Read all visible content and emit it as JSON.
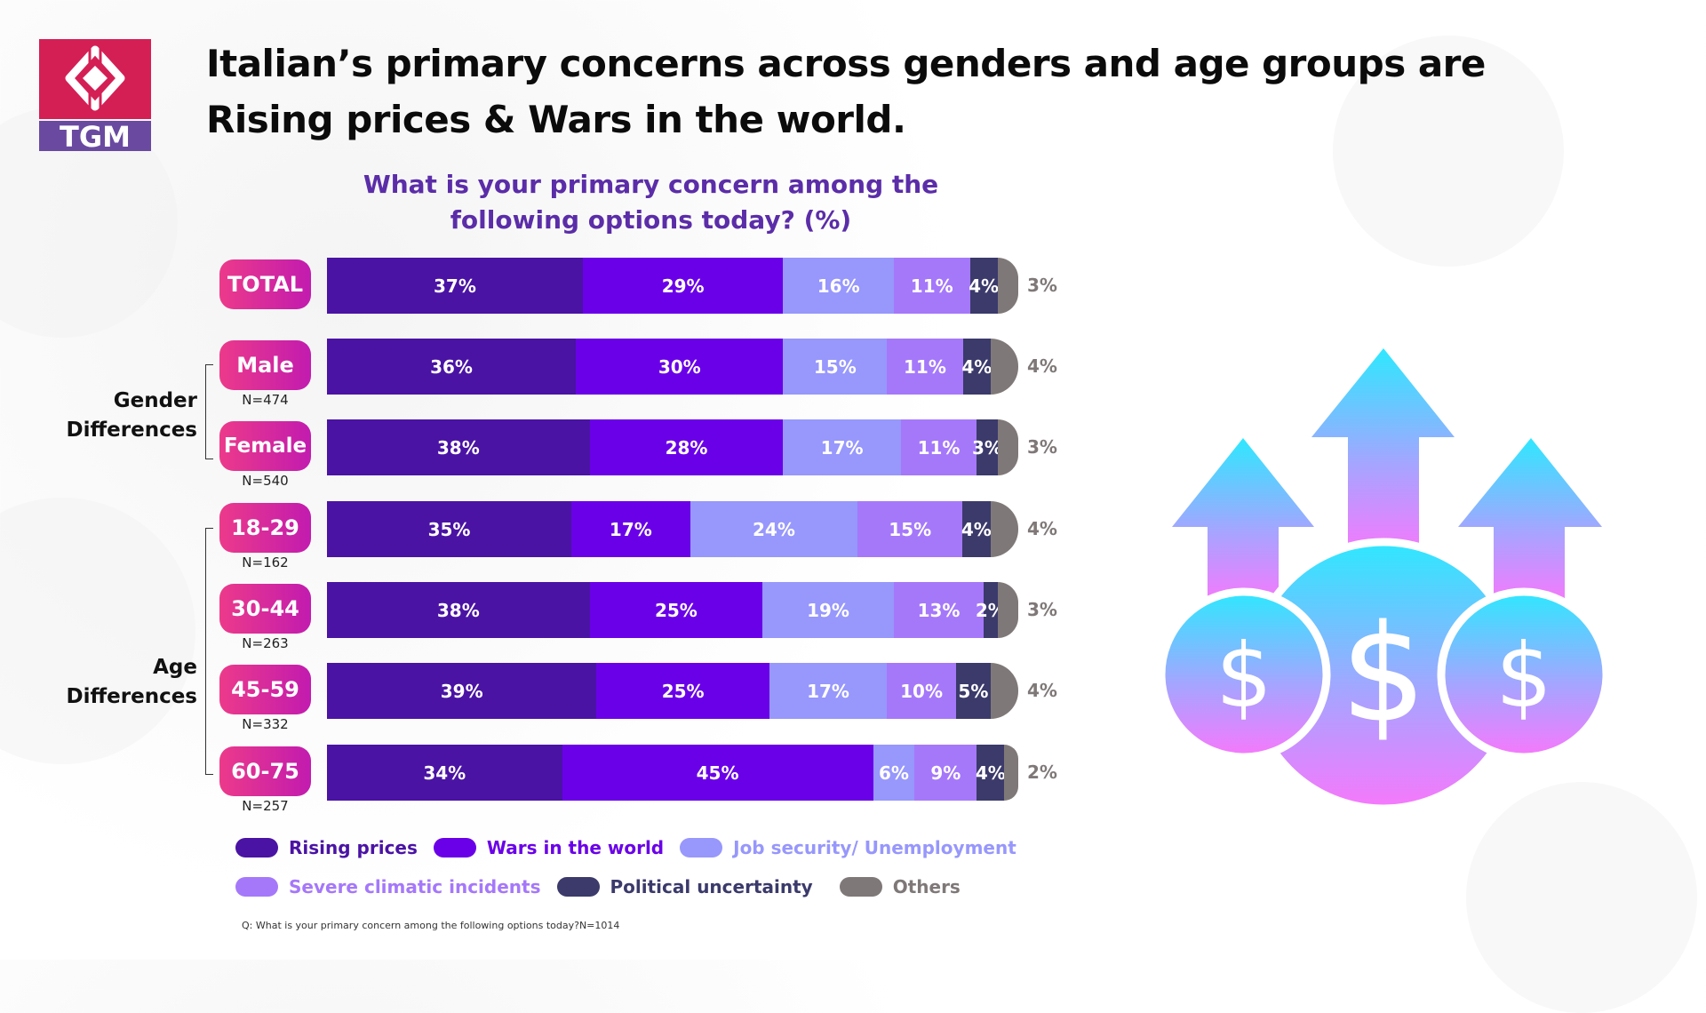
{
  "header": {
    "logo_text": "TGM",
    "title_line1": "Italian’s primary concerns across genders and age groups are",
    "title_line2": "Rising prices & Wars in the world."
  },
  "chart_data": {
    "type": "bar",
    "orientation": "horizontal-stacked-100",
    "title": "What is your primary concern among the following options today? (%)",
    "subtitle_line1": "What is your primary concern among the",
    "subtitle_line2": "following options today? (%)",
    "xlabel": "",
    "ylabel": "",
    "xlim": [
      0,
      100
    ],
    "legend_position": "bottom",
    "series_names": [
      "Rising prices",
      "Wars in the world",
      "Job security/ Unemployment",
      "Severe climatic incidents",
      "Political uncertainty",
      "Others"
    ],
    "colors": [
      "#4A13A4",
      "#6A00E8",
      "#9797FC",
      "#A578FA",
      "#3B3A6B",
      "#7F7878"
    ],
    "legend_text_colors": [
      "#4A13A4",
      "#6A00E8",
      "#9797FC",
      "#A578FA",
      "#3B3A6B",
      "#7F7878"
    ],
    "categories": [
      "TOTAL",
      "Male",
      "Female",
      "18-29",
      "30-44",
      "45-59",
      "60-75"
    ],
    "sample_sizes": [
      "",
      "N=474",
      "N=540",
      "N=162",
      "N=263",
      "N=332",
      "N=257"
    ],
    "rows": [
      {
        "label": "TOTAL",
        "n": "",
        "values": [
          37,
          29,
          16,
          11,
          4,
          3
        ]
      },
      {
        "label": "Male",
        "n": "N=474",
        "values": [
          36,
          30,
          15,
          11,
          4,
          4
        ]
      },
      {
        "label": "Female",
        "n": "N=540",
        "values": [
          38,
          28,
          17,
          11,
          3,
          3
        ]
      },
      {
        "label": "18-29",
        "n": "N=162",
        "values": [
          35,
          17,
          24,
          15,
          4,
          4
        ]
      },
      {
        "label": "30-44",
        "n": "N=263",
        "values": [
          38,
          25,
          19,
          13,
          2,
          3
        ]
      },
      {
        "label": "45-59",
        "n": "N=332",
        "values": [
          39,
          25,
          17,
          10,
          5,
          4
        ]
      },
      {
        "label": "60-75",
        "n": "N=257",
        "values": [
          34,
          45,
          6,
          9,
          4,
          2
        ]
      }
    ],
    "groups": [
      {
        "label_line1": "Gender",
        "label_line2": "Differences",
        "rows": [
          "Male",
          "Female"
        ]
      },
      {
        "label_line1": "Age",
        "label_line2": "Differences",
        "rows": [
          "18-29",
          "30-44",
          "45-59",
          "60-75"
        ]
      }
    ],
    "value_suffix": "%"
  },
  "footnote": "Q: What is your primary concern among the following options today?N=1014",
  "illustration": {
    "icon": "rising-dollar-coins-arrows-icon",
    "gradient_top": "#2EE8FF",
    "gradient_bottom": "#F778FC"
  }
}
